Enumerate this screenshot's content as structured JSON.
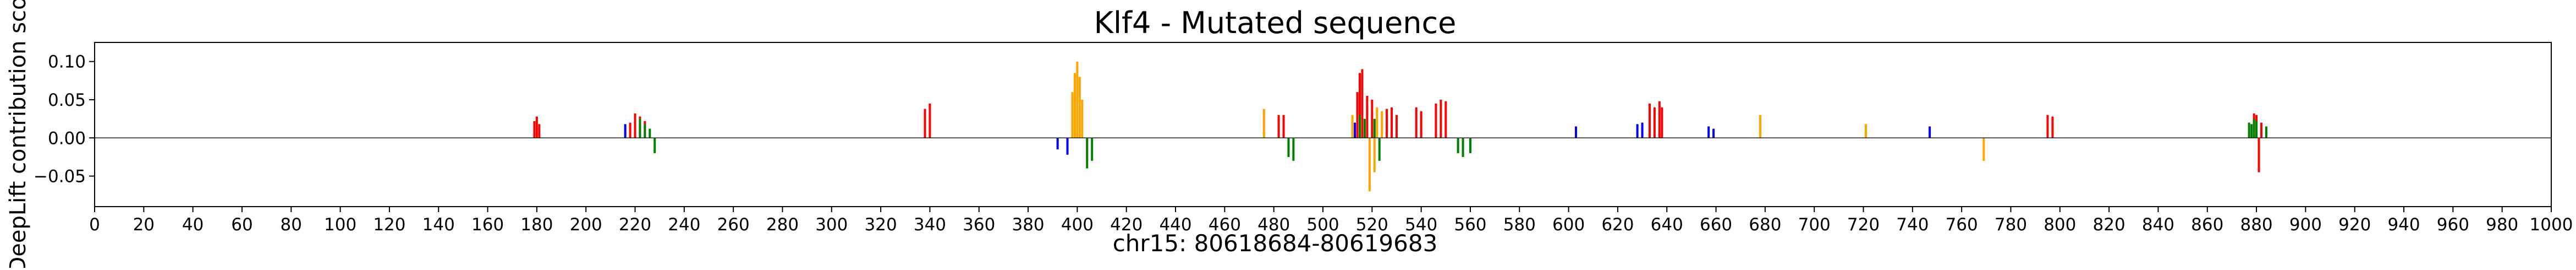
{
  "chart_data": {
    "type": "bar",
    "title": "Klf4 - Mutated sequence",
    "xlabel": "chr15: 80618684-80619683",
    "ylabel": "DeepLift contribution sco",
    "xlim": [
      0,
      1000
    ],
    "ylim": [
      -0.09,
      0.125
    ],
    "xticks": [
      0,
      20,
      40,
      60,
      80,
      100,
      120,
      140,
      160,
      180,
      200,
      220,
      240,
      260,
      280,
      300,
      320,
      340,
      360,
      380,
      400,
      420,
      440,
      460,
      480,
      500,
      520,
      540,
      560,
      580,
      600,
      620,
      640,
      660,
      680,
      700,
      720,
      740,
      760,
      780,
      800,
      820,
      840,
      860,
      880,
      900,
      920,
      940,
      960,
      980,
      1000
    ],
    "xtick_labels": [
      "0",
      "20",
      "40",
      "60",
      "80",
      "100",
      "120",
      "140",
      "160",
      "180",
      "200",
      "220",
      "240",
      "260",
      "280",
      "300",
      "320",
      "340",
      "360",
      "380",
      "400",
      "420",
      "440",
      "460",
      "480",
      "500",
      "520",
      "540",
      "560",
      "580",
      "600",
      "620",
      "640",
      "660",
      "680",
      "700",
      "720",
      "740",
      "760",
      "780",
      "800",
      "820",
      "840",
      "860",
      "880",
      "900",
      "920",
      "940",
      "960",
      "980",
      "1000"
    ],
    "yticks": [
      -0.05,
      0.0,
      0.05,
      0.1
    ],
    "ytick_labels": [
      "−0.05",
      "0.00",
      "0.05",
      "0.10"
    ],
    "grid": false,
    "legend": "none",
    "colors": {
      "A": "#008000",
      "C": "#0000ff",
      "G": "#ffa500",
      "T": "#ff0000"
    },
    "series": [
      {
        "base": "T",
        "x": [
          179,
          180,
          181,
          218,
          220,
          222,
          224,
          338,
          340,
          482,
          484,
          514,
          515,
          516,
          518,
          520,
          526,
          528,
          530,
          538,
          540,
          546,
          548,
          550,
          633,
          635,
          637,
          638,
          795,
          797,
          879,
          880,
          881,
          882
        ],
        "values": [
          0.022,
          0.028,
          0.018,
          0.02,
          0.032,
          0.028,
          0.022,
          0.038,
          0.045,
          0.03,
          0.03,
          0.06,
          0.085,
          0.09,
          0.055,
          0.05,
          0.038,
          0.04,
          0.03,
          0.04,
          0.035,
          0.045,
          0.05,
          0.048,
          0.045,
          0.04,
          0.048,
          0.04,
          0.03,
          0.028,
          0.032,
          0.03,
          -0.045,
          0.02
        ]
      },
      {
        "base": "G",
        "x": [
          398,
          399,
          400,
          401,
          402,
          404,
          476,
          512,
          519,
          521,
          522,
          524,
          678,
          721,
          769
        ],
        "values": [
          0.06,
          0.085,
          0.1,
          0.08,
          0.05,
          -0.03,
          0.038,
          0.03,
          -0.07,
          -0.045,
          0.04,
          0.035,
          0.03,
          0.018,
          -0.03
        ]
      },
      {
        "base": "A",
        "x": [
          222,
          224,
          226,
          228,
          404,
          406,
          486,
          488,
          515,
          517,
          521,
          523,
          555,
          557,
          560,
          877,
          878,
          879,
          880,
          884
        ],
        "values": [
          0.025,
          0.018,
          0.012,
          -0.02,
          -0.04,
          -0.03,
          -0.025,
          -0.03,
          0.03,
          0.025,
          0.025,
          -0.03,
          -0.02,
          -0.025,
          -0.02,
          0.02,
          0.018,
          0.025,
          0.022,
          0.015
        ]
      },
      {
        "base": "C",
        "x": [
          216,
          392,
          396,
          513,
          603,
          628,
          630,
          657,
          659,
          747
        ],
        "values": [
          0.018,
          -0.015,
          -0.022,
          0.02,
          0.015,
          0.018,
          0.02,
          0.015,
          0.012,
          0.015
        ]
      }
    ]
  }
}
